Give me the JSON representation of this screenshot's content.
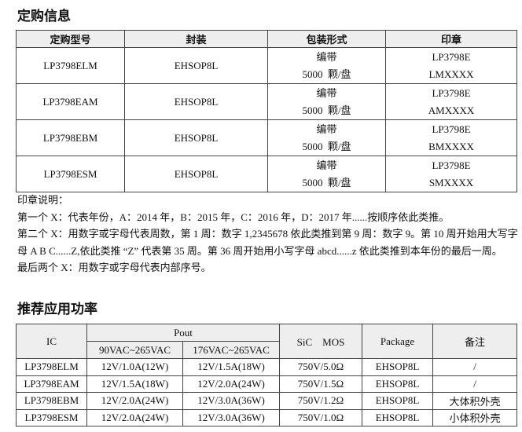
{
  "ordering": {
    "title": "定购信息",
    "headers": [
      "定购型号",
      "封装",
      "包装形式",
      "印章"
    ],
    "rows": [
      {
        "model": "LP3798ELM",
        "package": "EHSOP8L",
        "packing": [
          "编带",
          "5000  颗/盘"
        ],
        "marking": [
          "LP3798E",
          "LMXXXX"
        ]
      },
      {
        "model": "LP3798EAM",
        "package": "EHSOP8L",
        "packing": [
          "编带",
          "5000  颗/盘"
        ],
        "marking": [
          "LP3798E",
          "AMXXXX"
        ]
      },
      {
        "model": "LP3798EBM",
        "package": "EHSOP8L",
        "packing": [
          "编带",
          "5000  颗/盘"
        ],
        "marking": [
          "LP3798E",
          "BMXXXX"
        ]
      },
      {
        "model": "LP3798ESM",
        "package": "EHSOP8L",
        "packing": [
          "编带",
          "5000  颗/盘"
        ],
        "marking": [
          "LP3798E",
          "SMXXXX"
        ]
      }
    ]
  },
  "notes": [
    "印章说明：",
    "第一个 X：代表年份，A：2014 年，B：2015 年，C：2016 年，D：2017 年......按顺序依此类推。",
    "第二个 X：用数字或字母代表周数，第 1 周：数字 1,2345678 依此类推到第 9 周：数字 9。第 10 周开始用大写字母 A B C......Z,依此类推 “Z” 代表第 35 周。第 36 周开始用小写字母 abcd......z 依此类推到本年份的最后一周。",
    "最后两个 X：用数字或字母代表内部序号。"
  ],
  "power": {
    "title": "推荐应用功率",
    "headers": {
      "ic": "IC",
      "pout": "Pout",
      "range1": "90VAC~265VAC",
      "range2": "176VAC~265VAC",
      "mos": "SiC　MOS",
      "package": "Package",
      "remark": "备注"
    },
    "rows": [
      [
        "LP3798ELM",
        "12V/1.0A(12W)",
        "12V/1.5A(18W)",
        "750V/5.0Ω",
        "EHSOP8L",
        "/"
      ],
      [
        "LP3798EAM",
        "12V/1.5A(18W)",
        "12V/2.0A(24W)",
        "750V/1.5Ω",
        "EHSOP8L",
        "/"
      ],
      [
        "LP3798EBM",
        "12V/2.0A(24W)",
        "12V/3.0A(36W)",
        "750V/1.2Ω",
        "EHSOP8L",
        "大体积外壳"
      ],
      [
        "LP3798ESM",
        "12V/2.0A(24W)",
        "12V/3.0A(36W)",
        "750V/1.0Ω",
        "EHSOP8L",
        "小体积外壳"
      ]
    ]
  }
}
